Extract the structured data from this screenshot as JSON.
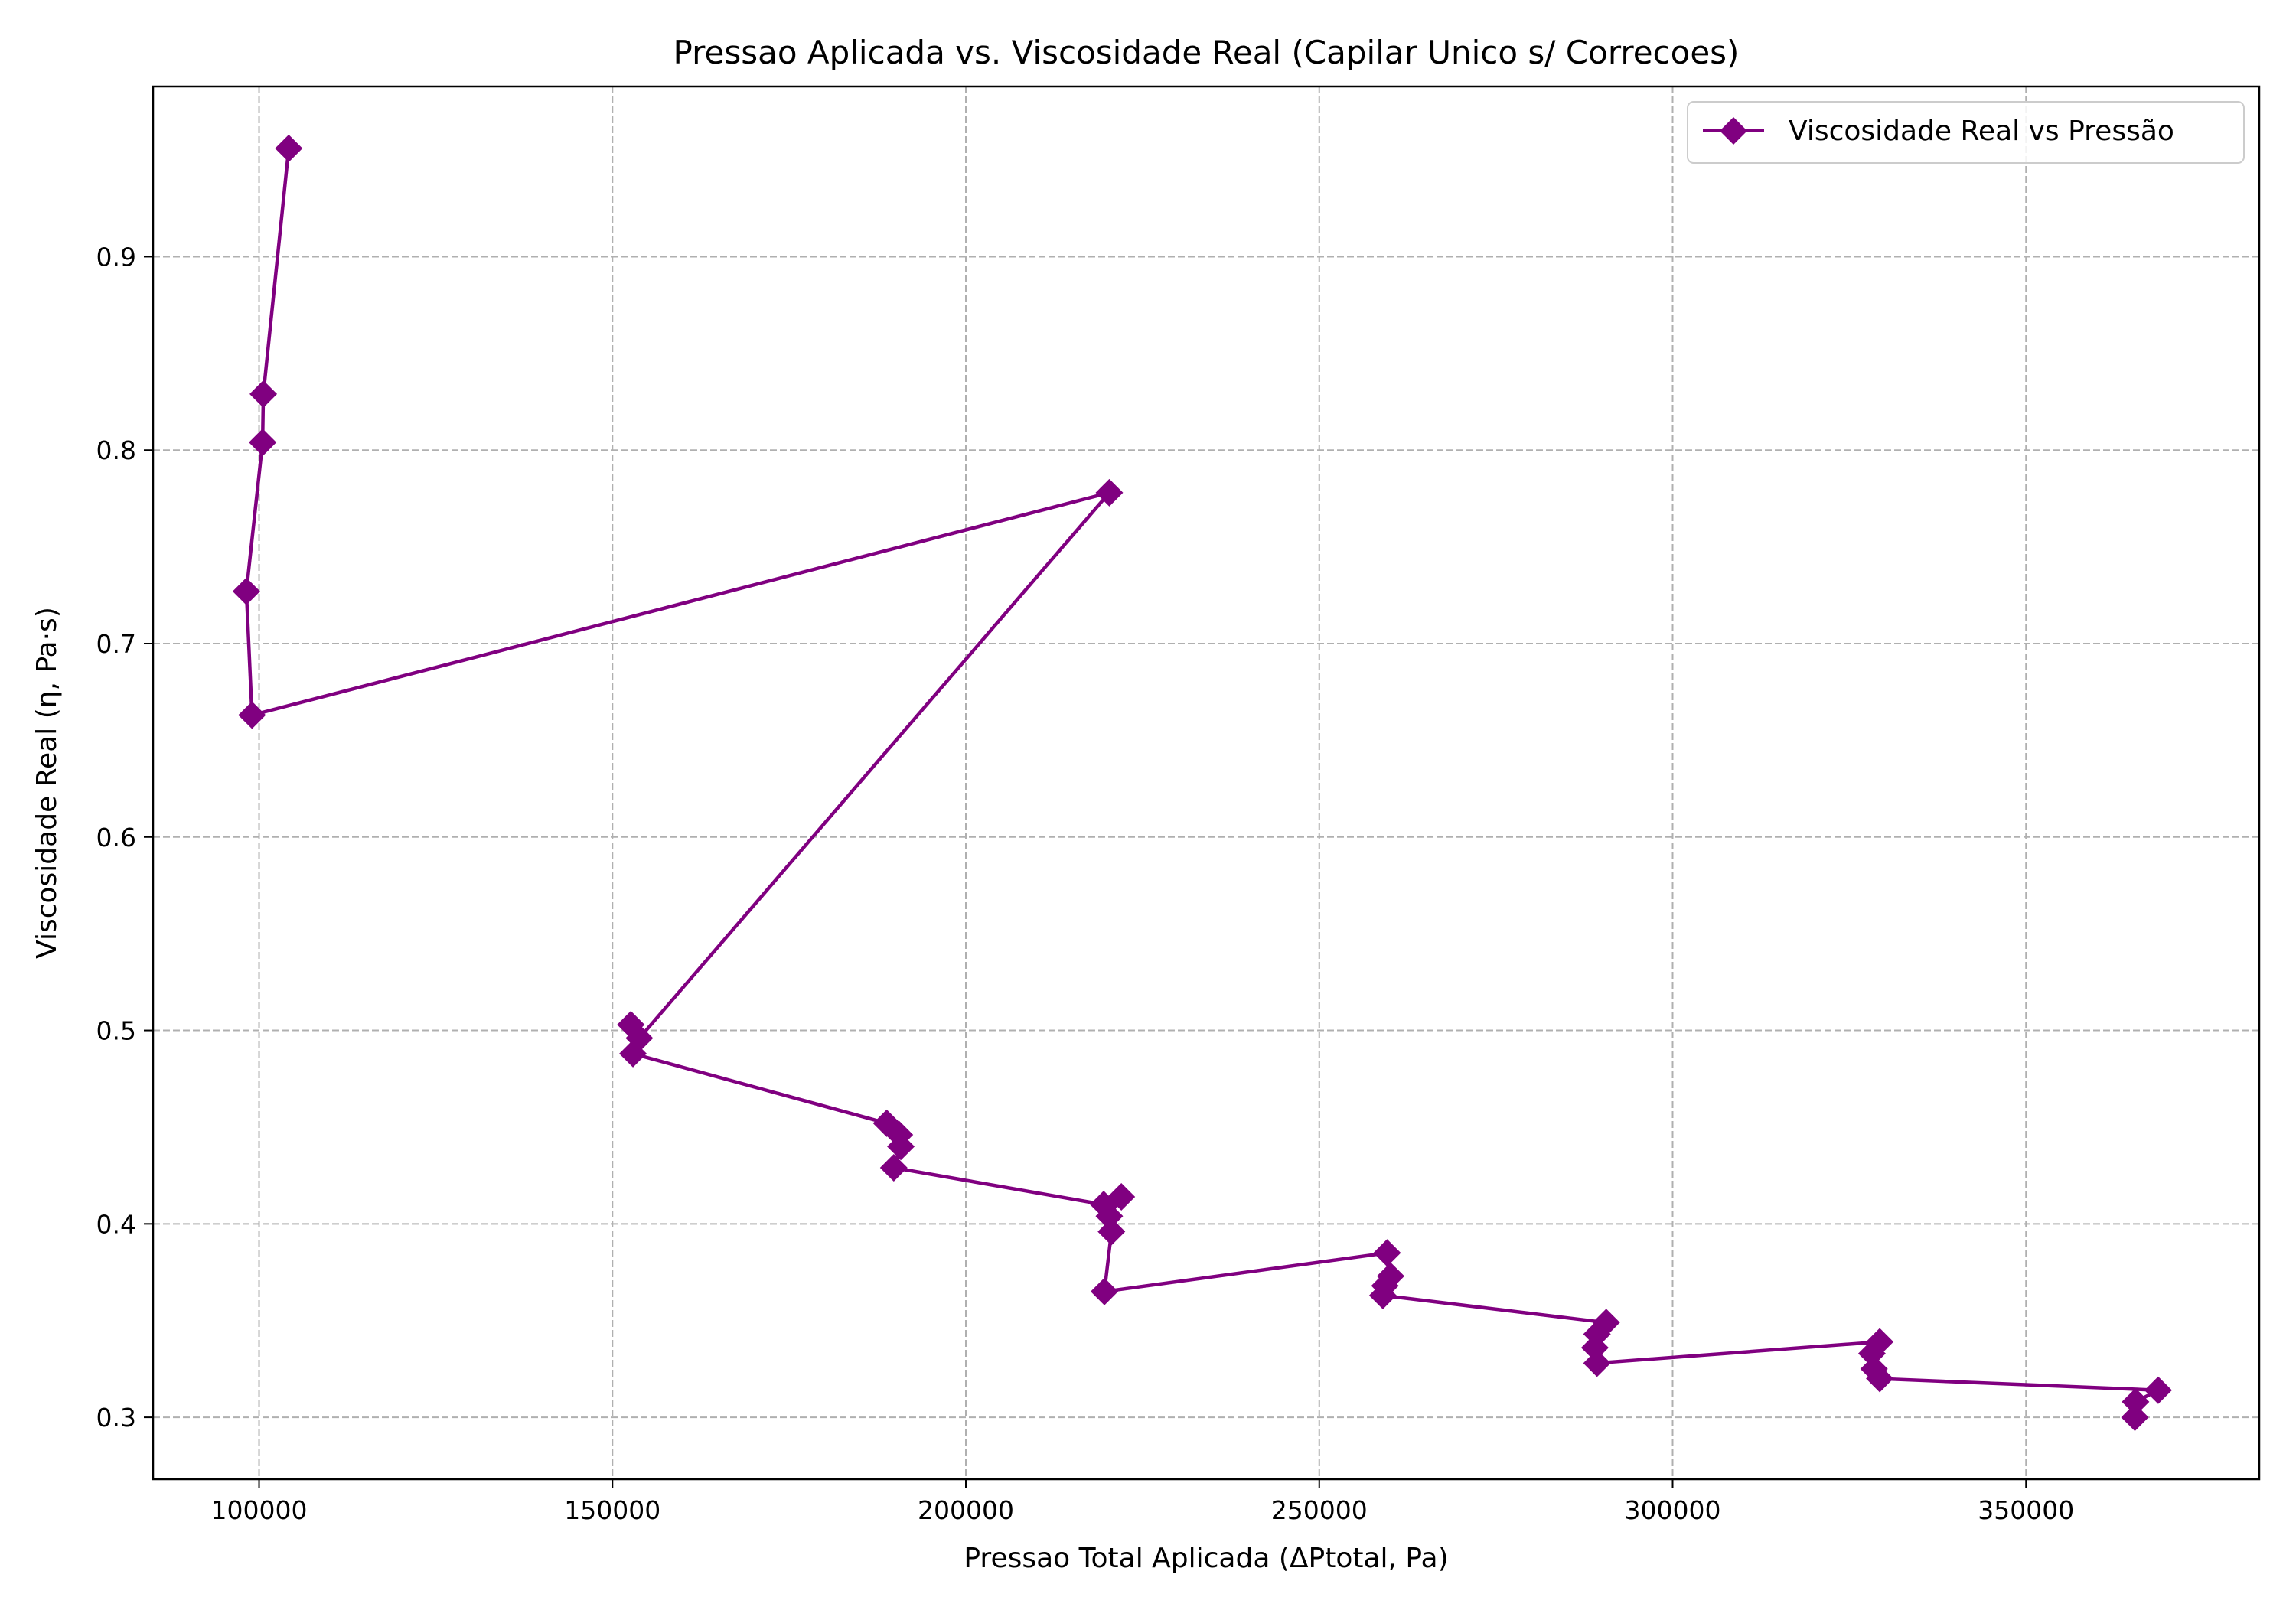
{
  "chart_data": {
    "type": "line",
    "title": "Pressao Aplicada vs. Viscosidade Real (Capilar Unico s/ Correcoes)",
    "xlabel": "Pressao Total Aplicada (ΔPtotal, Pa)",
    "ylabel": "Viscosidade Real (η, Pa·s)",
    "xlim": [
      85000,
      383000
    ],
    "ylim": [
      0.268,
      0.988
    ],
    "xticks": [
      100000,
      150000,
      200000,
      250000,
      300000,
      350000
    ],
    "xtick_labels": [
      "100000",
      "150000",
      "200000",
      "250000",
      "300000",
      "350000"
    ],
    "yticks": [
      0.3,
      0.4,
      0.5,
      0.6,
      0.7,
      0.8,
      0.9
    ],
    "ytick_labels": [
      "0.3",
      "0.4",
      "0.5",
      "0.6",
      "0.7",
      "0.8",
      "0.9"
    ],
    "grid": true,
    "legend_position": "top-right",
    "series": [
      {
        "name": "Viscosidade Real vs Pressão",
        "color": "#800080",
        "marker": "diamond",
        "points": [
          {
            "x": 104200,
            "y": 0.956
          },
          {
            "x": 100600,
            "y": 0.829
          },
          {
            "x": 100500,
            "y": 0.804
          },
          {
            "x": 98200,
            "y": 0.727
          },
          {
            "x": 99000,
            "y": 0.663
          },
          {
            "x": 220300,
            "y": 0.778
          },
          {
            "x": 153800,
            "y": 0.496
          },
          {
            "x": 152600,
            "y": 0.503
          },
          {
            "x": 152900,
            "y": 0.488
          },
          {
            "x": 188800,
            "y": 0.452
          },
          {
            "x": 190600,
            "y": 0.446
          },
          {
            "x": 190800,
            "y": 0.44
          },
          {
            "x": 189800,
            "y": 0.429
          },
          {
            "x": 219500,
            "y": 0.41
          },
          {
            "x": 222000,
            "y": 0.414
          },
          {
            "x": 220300,
            "y": 0.404
          },
          {
            "x": 220600,
            "y": 0.396
          },
          {
            "x": 219600,
            "y": 0.365
          },
          {
            "x": 259600,
            "y": 0.385
          },
          {
            "x": 260100,
            "y": 0.373
          },
          {
            "x": 259300,
            "y": 0.368
          },
          {
            "x": 259000,
            "y": 0.363
          },
          {
            "x": 290600,
            "y": 0.349
          },
          {
            "x": 289300,
            "y": 0.343
          },
          {
            "x": 289000,
            "y": 0.336
          },
          {
            "x": 289300,
            "y": 0.328
          },
          {
            "x": 329300,
            "y": 0.339
          },
          {
            "x": 328200,
            "y": 0.333
          },
          {
            "x": 328500,
            "y": 0.325
          },
          {
            "x": 329300,
            "y": 0.32
          },
          {
            "x": 368700,
            "y": 0.314
          },
          {
            "x": 365500,
            "y": 0.308
          },
          {
            "x": 365400,
            "y": 0.3
          }
        ]
      }
    ]
  }
}
